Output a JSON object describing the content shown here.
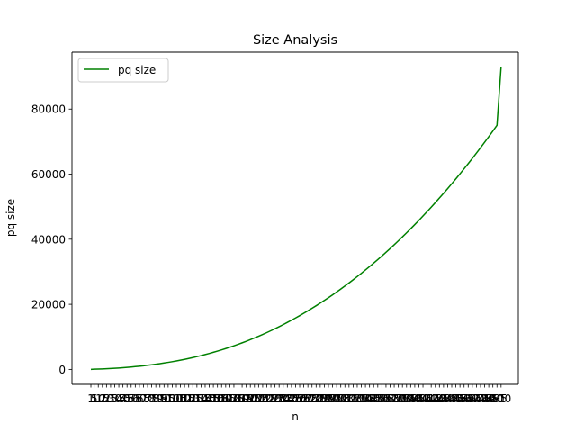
{
  "chart_data": {
    "type": "line",
    "title": "Size Analysis",
    "xlabel": "n",
    "ylabel": "pq size",
    "x": [
      1,
      5,
      10,
      15,
      20,
      25,
      30,
      35,
      40,
      45,
      50,
      55,
      60,
      65,
      70,
      75,
      80,
      85,
      90,
      95,
      100,
      105,
      110,
      115,
      120,
      125,
      130,
      135,
      140,
      145,
      150,
      155,
      160,
      165,
      170,
      175,
      180,
      185,
      190,
      195,
      200,
      205,
      210,
      215,
      220,
      225,
      230,
      235,
      240,
      245,
      250,
      255,
      260,
      265,
      270,
      275,
      280,
      285,
      290,
      295,
      300,
      305,
      310,
      315,
      320,
      325,
      330,
      335,
      340,
      345,
      350,
      355,
      360,
      365,
      370,
      375,
      380,
      385,
      390,
      395,
      400,
      405,
      410,
      415,
      420,
      425,
      430,
      435,
      440,
      445,
      450,
      455,
      460,
      465,
      470,
      475,
      480,
      485,
      490,
      495,
      500
    ],
    "x_tick_labels": [
      "1",
      "5",
      "10",
      "15",
      "20",
      "25",
      "30",
      "35",
      "40",
      "45",
      "50",
      "55",
      "60",
      "65",
      "70",
      "75",
      "80",
      "85",
      "90",
      "95",
      "100",
      "105",
      "110",
      "115",
      "120",
      "125",
      "130",
      "135",
      "140",
      "145",
      "150",
      "155",
      "160",
      "165",
      "170",
      "175",
      "180",
      "185",
      "190",
      "195",
      "200",
      "205",
      "210",
      "215",
      "220",
      "225",
      "230",
      "235",
      "240",
      "245",
      "250",
      "255",
      "260",
      "265",
      "270",
      "275",
      "280",
      "285",
      "290",
      "295",
      "300",
      "305",
      "310",
      "315",
      "320",
      "325",
      "330",
      "335",
      "340",
      "345",
      "350",
      "355",
      "360",
      "365",
      "370",
      "375",
      "380",
      "385",
      "390",
      "395",
      "400",
      "405",
      "410",
      "415",
      "420",
      "425",
      "430",
      "435",
      "440",
      "445",
      "450",
      "455",
      "460",
      "465",
      "470",
      "475",
      "480",
      "485",
      "490",
      "495",
      "500"
    ],
    "series": [
      {
        "name": "pq size",
        "color": "#008000",
        "values": [
          0,
          80,
          100,
          150,
          210,
          280,
          350,
          430,
          520,
          620,
          730,
          850,
          980,
          1120,
          1270,
          1420,
          1590,
          1770,
          1960,
          2160,
          2370,
          2600,
          2840,
          3090,
          3360,
          3640,
          3930,
          4240,
          4560,
          4900,
          5250,
          5620,
          6000,
          6400,
          6820,
          7250,
          7700,
          8160,
          8640,
          9140,
          9660,
          10190,
          10740,
          11310,
          11900,
          12500,
          13130,
          13770,
          14430,
          15110,
          15800,
          16520,
          17250,
          18000,
          18770,
          19560,
          20370,
          21200,
          22040,
          22910,
          23790,
          24700,
          25620,
          26570,
          27530,
          28520,
          29520,
          30550,
          31590,
          32660,
          33750,
          34860,
          35990,
          37140,
          38310,
          39500,
          40720,
          41960,
          43220,
          44500,
          45800,
          47130,
          48480,
          49850,
          51240,
          52660,
          54100,
          55560,
          57050,
          58560,
          60090,
          61650,
          63230,
          64840,
          66470,
          68130,
          69810,
          71510,
          73240,
          75000,
          92900
        ]
      }
    ],
    "y_ticks": [
      0,
      20000,
      40000,
      60000,
      80000
    ],
    "y_tick_labels": [
      "0",
      "20000",
      "40000",
      "60000",
      "80000"
    ],
    "xlim": [
      -22,
      521
    ],
    "ylim": [
      -4600,
      97500
    ],
    "grid": false,
    "legend_position": "upper left"
  }
}
